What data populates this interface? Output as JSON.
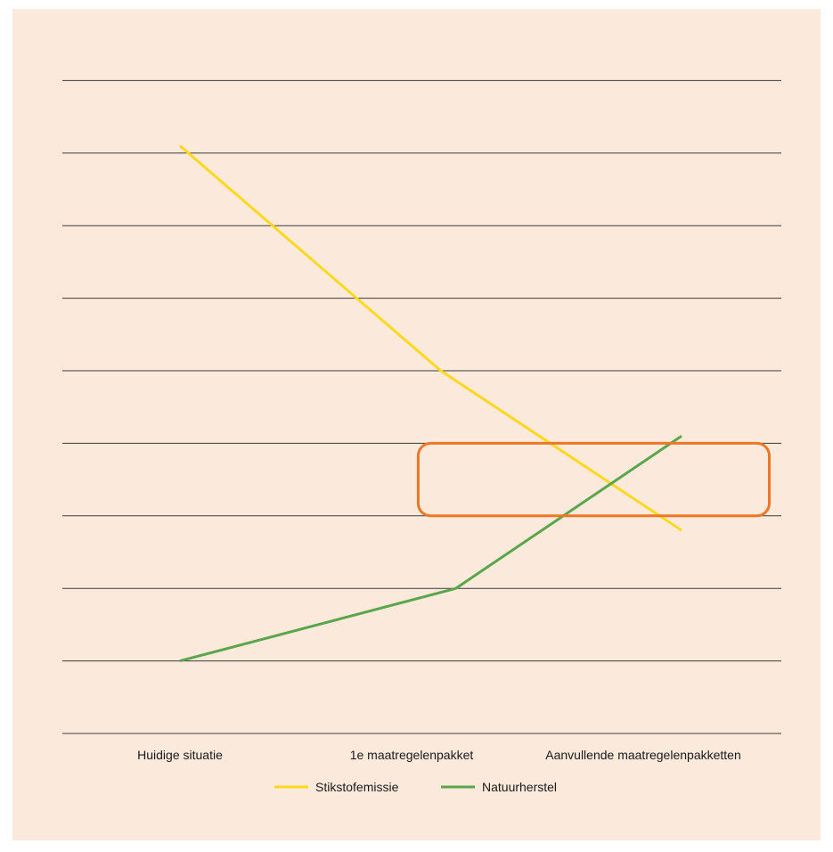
{
  "chart_data": {
    "type": "line",
    "title": "",
    "xlabel": "",
    "ylabel": "",
    "categories": [
      "Huidige situatie",
      "1e maatregelenpakket",
      "Aanvullende maatregelenpakketten"
    ],
    "ylim": [
      0,
      10
    ],
    "grid": true,
    "y_ticks_printed": false,
    "legend_position": "bottom-center",
    "series": [
      {
        "name": "Stikstofemissie",
        "color": "#fbd91c",
        "x": [
          0,
          1.04,
          2.0
        ],
        "values": [
          8.1,
          5.0,
          2.8
        ]
      },
      {
        "name": "Natuurherstel",
        "color": "#5aa64b",
        "x": [
          0,
          1.1,
          2.0
        ],
        "values": [
          1.0,
          2.0,
          4.1
        ]
      }
    ],
    "annotation": {
      "type": "highlight-box",
      "color": "#ee7726",
      "x_range": [
        0.95,
        2.35
      ],
      "y_range": [
        3.0,
        4.0
      ]
    },
    "gridline_color": "#3a3a3a",
    "background_color": "#fbe9dc"
  }
}
